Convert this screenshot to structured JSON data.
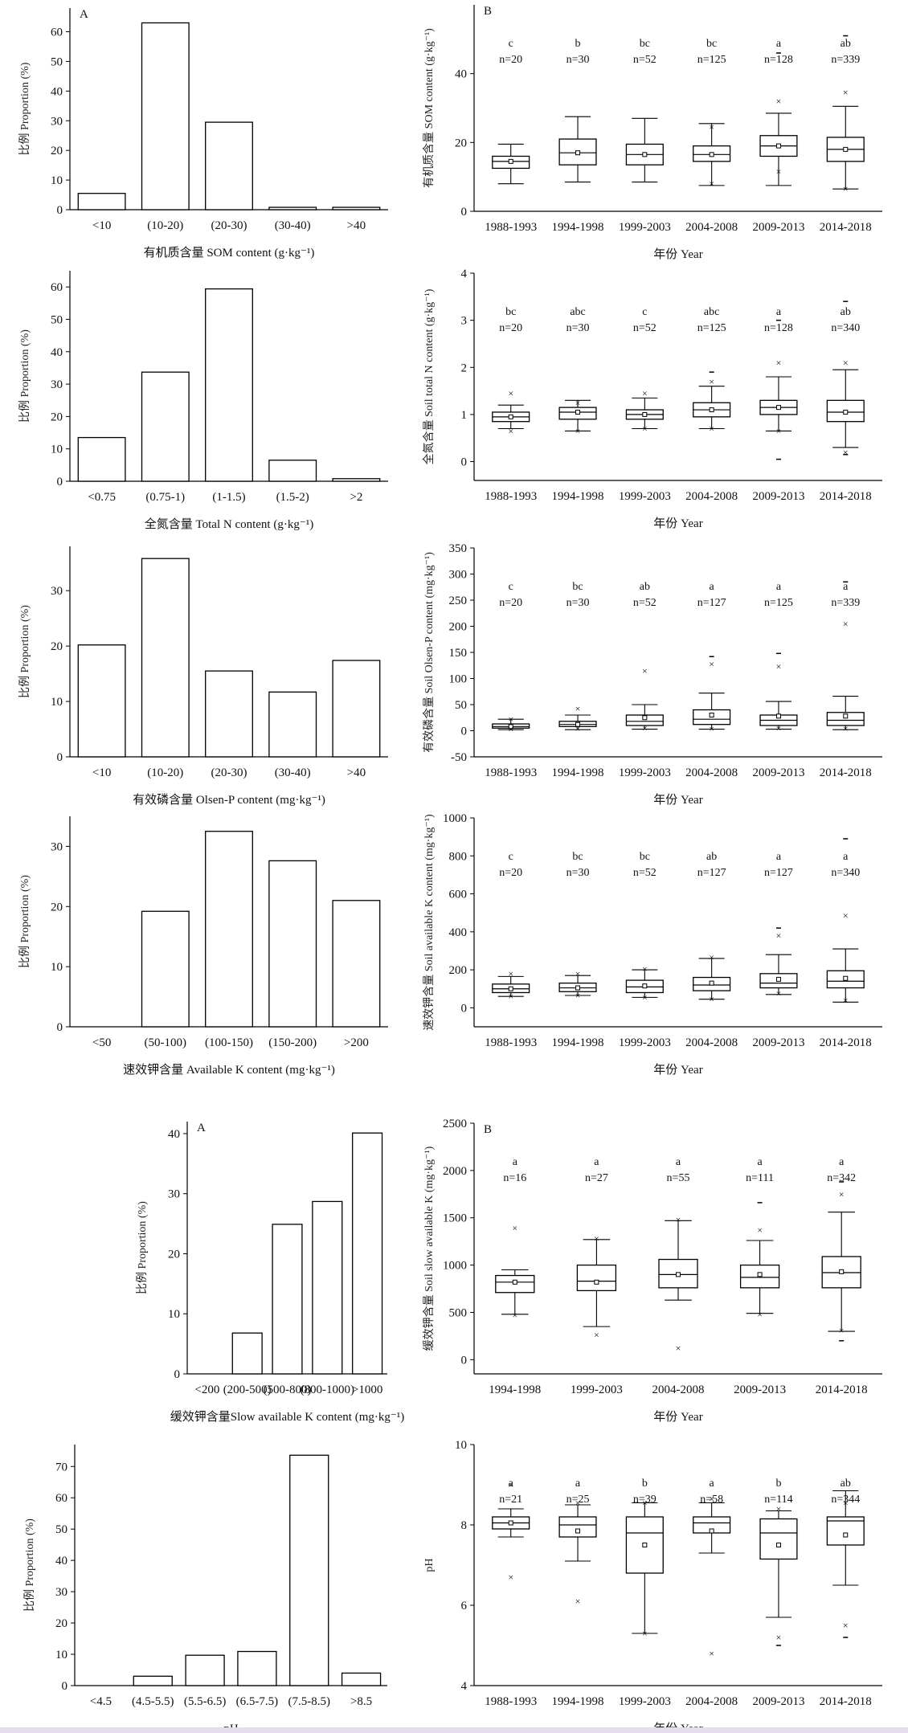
{
  "chart_data": [
    {
      "id": "som-hist",
      "type": "bar",
      "panel_label": "A",
      "categories": [
        "<10",
        "(10-20)",
        "(20-30)",
        "(30-40)",
        ">40"
      ],
      "values": [
        5.5,
        63,
        29.5,
        0.8,
        0.8
      ],
      "xlabel": "有机质含量 SOM content (g·kg⁻¹)",
      "ylabel": "比例 Proportion (%)",
      "ylim": [
        0,
        68
      ],
      "yticks": [
        0,
        10,
        20,
        30,
        40,
        50,
        60
      ],
      "y_top_tick_label": "",
      "grid": false
    },
    {
      "id": "som-box",
      "type": "box",
      "panel_label": "B",
      "categories": [
        "1988-1993",
        "1994-1998",
        "1999-2003",
        "2004-2008",
        "2009-2013",
        "2014-2018"
      ],
      "letters": [
        "c",
        "b",
        "bc",
        "bc",
        "a",
        "ab"
      ],
      "n_labels": [
        "n=20",
        "n=30",
        "n=52",
        "n=125",
        "n=128",
        "n=339"
      ],
      "boxes": [
        {
          "whisker_low": 8,
          "q1": 12.5,
          "median": 14.5,
          "mean": 14.5,
          "q3": 16,
          "whisker_high": 19.5,
          "outliers": [],
          "extremes": []
        },
        {
          "whisker_low": 8.5,
          "q1": 13.5,
          "median": 17,
          "mean": 17,
          "q3": 21,
          "whisker_high": 27.5,
          "outliers": [],
          "extremes": []
        },
        {
          "whisker_low": 8.5,
          "q1": 13.5,
          "median": 16.5,
          "mean": 16.5,
          "q3": 19.5,
          "whisker_high": 27,
          "outliers": [],
          "extremes": []
        },
        {
          "whisker_low": 7.5,
          "q1": 14.5,
          "median": 16.5,
          "mean": 16.5,
          "q3": 19,
          "whisker_high": 25.5,
          "outliers": [
            24.5,
            8
          ],
          "extremes": []
        },
        {
          "whisker_low": 7.5,
          "q1": 16,
          "median": 19,
          "mean": 19,
          "q3": 22,
          "whisker_high": 28.5,
          "outliers": [
            32,
            11.5
          ],
          "extremes": [
            46
          ]
        },
        {
          "whisker_low": 6.5,
          "q1": 14.5,
          "median": 18,
          "mean": 18,
          "q3": 21.5,
          "whisker_high": 30.5,
          "outliers": [
            34.5,
            6.5
          ],
          "extremes": [
            51
          ]
        }
      ],
      "xlabel": "年份 Year",
      "ylabel": "有机质含量 SOM content (g·kg⁻¹)",
      "ylim": [
        0,
        60
      ],
      "yticks": [
        0,
        20,
        40
      ],
      "grid": false
    },
    {
      "id": "tn-hist",
      "type": "bar",
      "panel_label": "",
      "categories": [
        "<0.75",
        "(0.75-1)",
        "(1-1.5)",
        "(1.5-2)",
        ">2"
      ],
      "values": [
        13.5,
        33.7,
        59.4,
        6.5,
        0.8
      ],
      "xlabel": "全氮含量 Total N content (g·kg⁻¹)",
      "ylabel": "比例 Proportion (%)",
      "ylim": [
        0,
        65
      ],
      "yticks": [
        0,
        10,
        20,
        30,
        40,
        50,
        60
      ],
      "grid": false
    },
    {
      "id": "tn-box",
      "type": "box",
      "panel_label": "",
      "categories": [
        "1988-1993",
        "1994-1998",
        "1999-2003",
        "2004-2008",
        "2009-2013",
        "2014-2018"
      ],
      "letters": [
        "bc",
        "abc",
        "c",
        "abc",
        "a",
        "ab"
      ],
      "n_labels": [
        "n=20",
        "n=30",
        "n=52",
        "n=125",
        "n=128",
        "n=340"
      ],
      "boxes": [
        {
          "whisker_low": 0.7,
          "q1": 0.85,
          "median": 0.95,
          "mean": 0.95,
          "q3": 1.05,
          "whisker_high": 1.2,
          "outliers": [
            1.45,
            0.65
          ],
          "extremes": []
        },
        {
          "whisker_low": 0.65,
          "q1": 0.9,
          "median": 1.05,
          "mean": 1.05,
          "q3": 1.15,
          "whisker_high": 1.3,
          "outliers": [
            1.25,
            0.65
          ],
          "extremes": []
        },
        {
          "whisker_low": 0.7,
          "q1": 0.9,
          "median": 1.0,
          "mean": 1.0,
          "q3": 1.1,
          "whisker_high": 1.35,
          "outliers": [
            1.45,
            0.7
          ],
          "extremes": []
        },
        {
          "whisker_low": 0.7,
          "q1": 0.95,
          "median": 1.1,
          "mean": 1.1,
          "q3": 1.25,
          "whisker_high": 1.6,
          "outliers": [
            1.7,
            0.7
          ],
          "extremes": [
            1.9
          ]
        },
        {
          "whisker_low": 0.65,
          "q1": 1.0,
          "median": 1.15,
          "mean": 1.15,
          "q3": 1.3,
          "whisker_high": 1.8,
          "outliers": [
            2.1,
            0.65
          ],
          "extremes": [
            3.0,
            0.05
          ]
        },
        {
          "whisker_low": 0.3,
          "q1": 0.85,
          "median": 1.05,
          "mean": 1.05,
          "q3": 1.3,
          "whisker_high": 1.95,
          "outliers": [
            2.1,
            0.2
          ],
          "extremes": [
            3.4,
            0.15
          ]
        }
      ],
      "xlabel": "年份 Year",
      "ylabel": "全氮含量 Soil total N content (g·kg⁻¹)",
      "ylim": [
        -0.4,
        4
      ],
      "yticks": [
        0,
        1,
        2,
        3,
        4
      ],
      "grid": false
    },
    {
      "id": "olsen-hist",
      "type": "bar",
      "panel_label": "",
      "categories": [
        "<10",
        "(10-20)",
        "(20-30)",
        "(30-40)",
        ">40"
      ],
      "values": [
        20.2,
        35.8,
        15.5,
        11.7,
        17.4
      ],
      "xlabel": "有效磷含量 Olsen-P content (mg·kg⁻¹)",
      "ylabel": "比例 Proportion (%)",
      "ylim": [
        0,
        38
      ],
      "yticks": [
        0,
        10,
        20,
        30
      ],
      "grid": false
    },
    {
      "id": "olsen-box",
      "type": "box",
      "panel_label": "",
      "categories": [
        "1988-1993",
        "1994-1998",
        "1999-2003",
        "2004-2008",
        "2009-2013",
        "2014-2018"
      ],
      "letters": [
        "c",
        "bc",
        "ab",
        "a",
        "a",
        "a"
      ],
      "n_labels": [
        "n=20",
        "n=30",
        "n=52",
        "n=127",
        "n=125",
        "n=339"
      ],
      "boxes": [
        {
          "whisker_low": 2,
          "q1": 5,
          "median": 8,
          "mean": 8,
          "q3": 13,
          "whisker_high": 22,
          "outliers": [
            22,
            3
          ],
          "extremes": []
        },
        {
          "whisker_low": 2,
          "q1": 8,
          "median": 12,
          "mean": 12,
          "q3": 18,
          "whisker_high": 30,
          "outliers": [
            42,
            4
          ],
          "extremes": []
        },
        {
          "whisker_low": 3,
          "q1": 10,
          "median": 18,
          "mean": 25,
          "q3": 30,
          "whisker_high": 50,
          "outliers": [
            115,
            5
          ],
          "extremes": []
        },
        {
          "whisker_low": 3,
          "q1": 12,
          "median": 22,
          "mean": 30,
          "q3": 40,
          "whisker_high": 72,
          "outliers": [
            128,
            4
          ],
          "extremes": [
            142
          ]
        },
        {
          "whisker_low": 3,
          "q1": 10,
          "median": 20,
          "mean": 28,
          "q3": 30,
          "whisker_high": 56,
          "outliers": [
            123,
            5
          ],
          "extremes": [
            148
          ]
        },
        {
          "whisker_low": 2,
          "q1": 10,
          "median": 20,
          "mean": 28,
          "q3": 35,
          "whisker_high": 66,
          "outliers": [
            205,
            4
          ],
          "extremes": [
            285
          ]
        }
      ],
      "xlabel": "年份 Year",
      "ylabel": "有效磷含量 Soil Olsen-P content (mg·kg⁻¹)",
      "ylim": [
        -50,
        350
      ],
      "yticks": [
        -50,
        0,
        50,
        100,
        150,
        200,
        250,
        300,
        350
      ],
      "grid": false
    },
    {
      "id": "ak-hist",
      "type": "bar",
      "panel_label": "",
      "categories": [
        "<50",
        "(50-100)",
        "(100-150)",
        "(150-200)",
        ">200"
      ],
      "values": [
        0,
        19.2,
        32.5,
        27.6,
        21.0
      ],
      "xlabel": "速效钾含量 Available K content (mg·kg⁻¹)",
      "ylabel": "比例 Proportion (%)",
      "ylim": [
        0,
        35
      ],
      "yticks": [
        0,
        10,
        20,
        30
      ],
      "grid": false
    },
    {
      "id": "ak-box",
      "type": "box",
      "panel_label": "",
      "categories": [
        "1988-1993",
        "1994-1998",
        "1999-2003",
        "2004-2008",
        "2009-2013",
        "2014-2018"
      ],
      "letters": [
        "c",
        "bc",
        "bc",
        "ab",
        "a",
        "a"
      ],
      "n_labels": [
        "n=20",
        "n=30",
        "n=52",
        "n=127",
        "n=127",
        "n=340"
      ],
      "boxes": [
        {
          "whisker_low": 60,
          "q1": 80,
          "median": 100,
          "mean": 100,
          "q3": 125,
          "whisker_high": 165,
          "outliers": [
            180,
            60
          ],
          "extremes": []
        },
        {
          "whisker_low": 65,
          "q1": 85,
          "median": 105,
          "mean": 105,
          "q3": 130,
          "whisker_high": 170,
          "outliers": [
            180,
            65
          ],
          "extremes": []
        },
        {
          "whisker_low": 55,
          "q1": 80,
          "median": 110,
          "mean": 115,
          "q3": 145,
          "whisker_high": 200,
          "outliers": [
            205,
            55
          ],
          "extremes": []
        },
        {
          "whisker_low": 45,
          "q1": 90,
          "median": 120,
          "mean": 130,
          "q3": 160,
          "whisker_high": 260,
          "outliers": [
            265,
            45
          ],
          "extremes": []
        },
        {
          "whisker_low": 70,
          "q1": 105,
          "median": 130,
          "mean": 150,
          "q3": 180,
          "whisker_high": 280,
          "outliers": [
            380,
            75
          ],
          "extremes": [
            420
          ]
        },
        {
          "whisker_low": 30,
          "q1": 105,
          "median": 140,
          "mean": 155,
          "q3": 195,
          "whisker_high": 310,
          "outliers": [
            485,
            40
          ],
          "extremes": [
            890
          ]
        }
      ],
      "xlabel": "年份 Year",
      "ylabel": "速效钾含量 Soil available K content (mg·kg⁻¹)",
      "ylim": [
        -100,
        1000
      ],
      "yticks": [
        0,
        200,
        400,
        600,
        800,
        1000
      ],
      "grid": false
    },
    {
      "id": "sk-hist",
      "type": "bar",
      "panel_label": "A",
      "categories": [
        "<200",
        "(200-500)",
        "(500-800)",
        "(800-1000)",
        ">1000"
      ],
      "values": [
        0,
        6.8,
        24.9,
        28.7,
        40.1
      ],
      "xlabel": "缓效钾含量Slow available K content (mg·kg⁻¹)",
      "ylabel": "比例 Proportion (%)",
      "ylim": [
        0,
        42
      ],
      "yticks": [
        0,
        10,
        20,
        30,
        40
      ],
      "grid": false
    },
    {
      "id": "sk-box",
      "type": "box",
      "panel_label": "B",
      "categories": [
        "1994-1998",
        "1999-2003",
        "2004-2008",
        "2009-2013",
        "2014-2018"
      ],
      "letters": [
        "a",
        "a",
        "a",
        "a",
        "a"
      ],
      "n_labels": [
        "n=16",
        "n=27",
        "n=55",
        "n=111",
        "n=342"
      ],
      "boxes": [
        {
          "whisker_low": 480,
          "q1": 710,
          "median": 820,
          "mean": 820,
          "q3": 890,
          "whisker_high": 950,
          "outliers": [
            1390,
            470
          ],
          "extremes": []
        },
        {
          "whisker_low": 350,
          "q1": 730,
          "median": 830,
          "mean": 820,
          "q3": 1000,
          "whisker_high": 1270,
          "outliers": [
            1280,
            260
          ],
          "extremes": []
        },
        {
          "whisker_low": 630,
          "q1": 760,
          "median": 900,
          "mean": 900,
          "q3": 1060,
          "whisker_high": 1470,
          "outliers": [
            1480,
            120
          ],
          "extremes": []
        },
        {
          "whisker_low": 490,
          "q1": 760,
          "median": 870,
          "mean": 900,
          "q3": 1000,
          "whisker_high": 1260,
          "outliers": [
            1370,
            480
          ],
          "extremes": [
            1660
          ]
        },
        {
          "whisker_low": 300,
          "q1": 760,
          "median": 920,
          "mean": 930,
          "q3": 1090,
          "whisker_high": 1560,
          "outliers": [
            1750,
            310
          ],
          "extremes": [
            1880,
            200
          ]
        }
      ],
      "xlabel": "年份 Year",
      "ylabel": "缓效钾含量 Soil slow available K (mg·kg⁻¹)",
      "ylim": [
        -150,
        2500
      ],
      "yticks": [
        0,
        500,
        1000,
        1500,
        2000,
        2500
      ],
      "grid": false
    },
    {
      "id": "ph-hist",
      "type": "bar",
      "panel_label": "",
      "categories": [
        "<4.5",
        "(4.5-5.5)",
        "(5.5-6.5)",
        "(6.5-7.5)",
        "(7.5-8.5)",
        ">8.5"
      ],
      "values": [
        0,
        3.0,
        9.7,
        10.9,
        73.6,
        4.0
      ],
      "xlabel": "pH",
      "ylabel": "比例 Proportion (%)",
      "ylim": [
        0,
        77
      ],
      "yticks": [
        0,
        10,
        20,
        30,
        40,
        50,
        60,
        70
      ],
      "grid": false
    },
    {
      "id": "ph-box",
      "type": "box",
      "panel_label": "",
      "categories": [
        "1988-1993",
        "1994-1998",
        "1999-2003",
        "2004-2008",
        "2009-2013",
        "2014-2018"
      ],
      "letters": [
        "a",
        "a",
        "b",
        "a",
        "b",
        "ab"
      ],
      "n_labels": [
        "n=21",
        "n=25",
        "n=39",
        "n=58",
        "n=114",
        "n=344"
      ],
      "boxes": [
        {
          "whisker_low": 7.7,
          "q1": 7.9,
          "median": 8.05,
          "mean": 8.05,
          "q3": 8.2,
          "whisker_high": 8.4,
          "outliers": [
            9.0,
            6.7
          ],
          "extremes": []
        },
        {
          "whisker_low": 7.1,
          "q1": 7.7,
          "median": 8.0,
          "mean": 7.85,
          "q3": 8.2,
          "whisker_high": 8.5,
          "outliers": [
            8.55,
            6.1
          ],
          "extremes": []
        },
        {
          "whisker_low": 5.3,
          "q1": 6.8,
          "median": 7.8,
          "mean": 7.5,
          "q3": 8.2,
          "whisker_high": 8.55,
          "outliers": [
            8.55,
            5.3
          ],
          "extremes": []
        },
        {
          "whisker_low": 7.3,
          "q1": 7.8,
          "median": 8.05,
          "mean": 7.85,
          "q3": 8.2,
          "whisker_high": 8.55,
          "outliers": [
            8.65,
            4.8
          ],
          "extremes": []
        },
        {
          "whisker_low": 5.7,
          "q1": 7.15,
          "median": 7.8,
          "mean": 7.5,
          "q3": 8.15,
          "whisker_high": 8.35,
          "outliers": [
            8.4,
            5.2
          ],
          "extremes": [
            5.0
          ]
        },
        {
          "whisker_low": 6.5,
          "q1": 7.5,
          "median": 8.1,
          "mean": 7.75,
          "q3": 8.2,
          "whisker_high": 8.85,
          "outliers": [
            8.55,
            5.5
          ],
          "extremes": [
            5.2
          ]
        }
      ],
      "xlabel": "年份 Year",
      "ylabel": "pH",
      "ylim": [
        4,
        10
      ],
      "yticks": [
        4,
        6,
        8,
        10
      ],
      "grid": false
    }
  ]
}
